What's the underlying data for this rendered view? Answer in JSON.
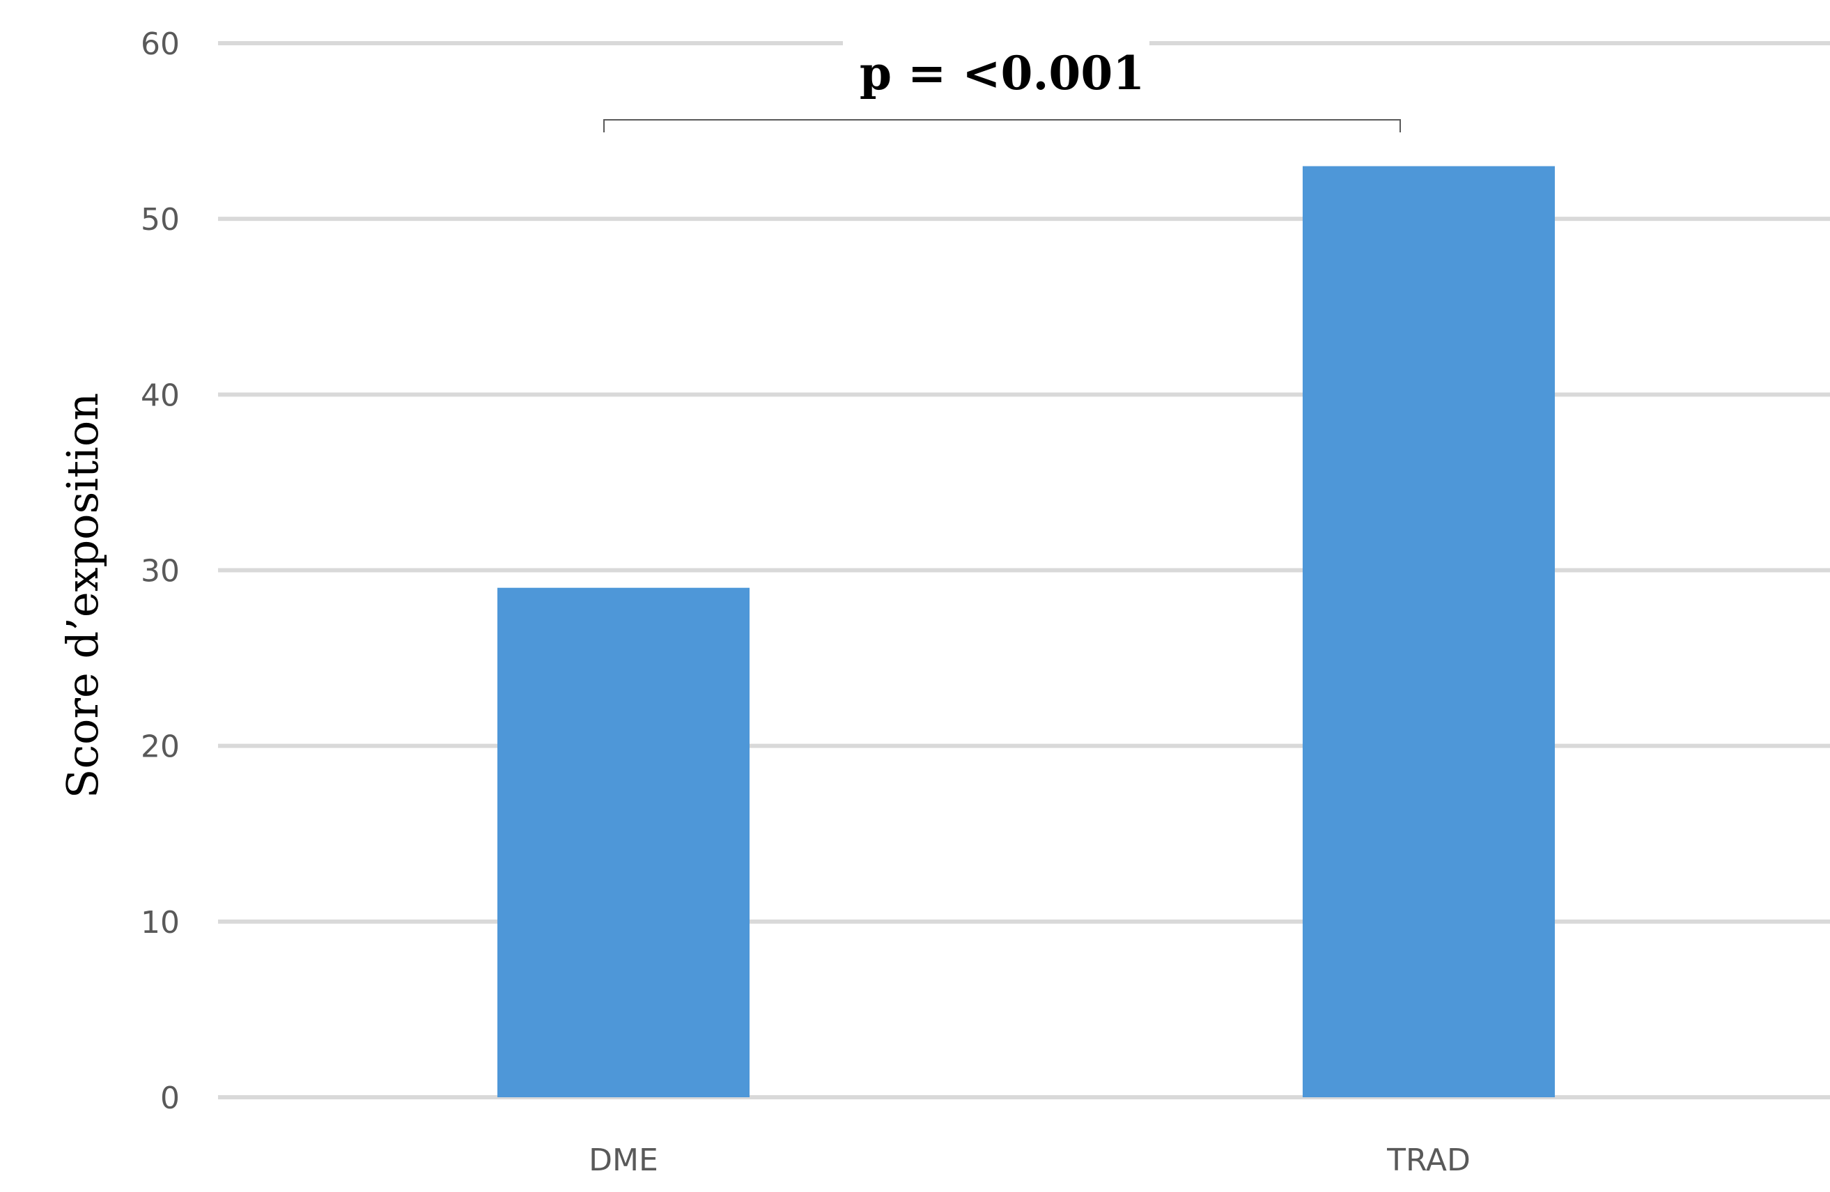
{
  "chart_data": {
    "type": "bar",
    "title": "",
    "xlabel": "",
    "ylabel": "Score d’exposition",
    "categories": [
      "DME",
      "TRAD"
    ],
    "series": [
      {
        "values": [
          29,
          53
        ]
      }
    ],
    "ylim": [
      0,
      60
    ],
    "yticks": [
      0,
      10,
      20,
      30,
      40,
      50,
      60
    ],
    "grid": true,
    "legend": "none",
    "annotation": {
      "text": "p = <0.001",
      "between": [
        "DME",
        "TRAD"
      ]
    },
    "colors": {
      "bar": "#4e97d8",
      "grid": "#d9d9d9",
      "bracket": "#595959"
    }
  }
}
